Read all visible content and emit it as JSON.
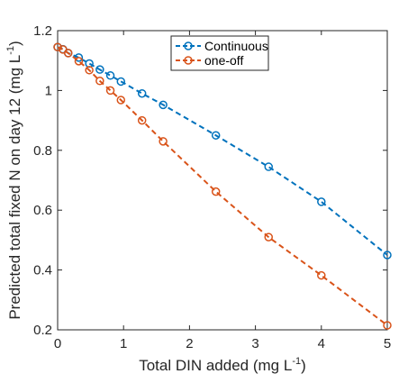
{
  "chart_data": {
    "type": "line",
    "xlabel": "Total DIN added (mg L",
    "xlabel_sup": "-1",
    "xlabel_suffix": ")",
    "ylabel": "Predicted total fixed N on day 12 (mg L",
    "ylabel_sup": "-1",
    "ylabel_suffix": ")",
    "xlim": [
      0,
      5
    ],
    "ylim": [
      0.2,
      1.2
    ],
    "xticks": [
      0,
      1,
      2,
      3,
      4,
      5
    ],
    "yticks": [
      0.2,
      0.4,
      0.6,
      0.8,
      1,
      1.2
    ],
    "xtick_labels": [
      "0",
      "1",
      "2",
      "3",
      "4",
      "5"
    ],
    "ytick_labels": [
      "0.2",
      "0.4",
      "0.6",
      "0.8",
      "1",
      "1.2"
    ],
    "grid": false,
    "legend_position": "top-center",
    "series": [
      {
        "name": "Continuous",
        "color": "#0072BD",
        "line_style": "dashed",
        "marker": "circle",
        "x": [
          0,
          0.08,
          0.16,
          0.32,
          0.48,
          0.64,
          0.8,
          0.96,
          1.28,
          1.6,
          2.4,
          3.2,
          4.0,
          5.0
        ],
        "y": [
          1.145,
          1.138,
          1.125,
          1.11,
          1.09,
          1.07,
          1.05,
          1.03,
          0.99,
          0.952,
          0.85,
          0.745,
          0.628,
          0.45
        ]
      },
      {
        "name": "one-off",
        "color": "#D95319",
        "line_style": "dashed",
        "marker": "circle",
        "x": [
          0,
          0.08,
          0.16,
          0.32,
          0.48,
          0.64,
          0.8,
          0.96,
          1.28,
          1.6,
          2.4,
          3.2,
          4.0,
          5.0
        ],
        "y": [
          1.145,
          1.137,
          1.125,
          1.098,
          1.068,
          1.032,
          1.0,
          0.968,
          0.9,
          0.83,
          0.662,
          0.51,
          0.382,
          0.215
        ]
      }
    ]
  }
}
